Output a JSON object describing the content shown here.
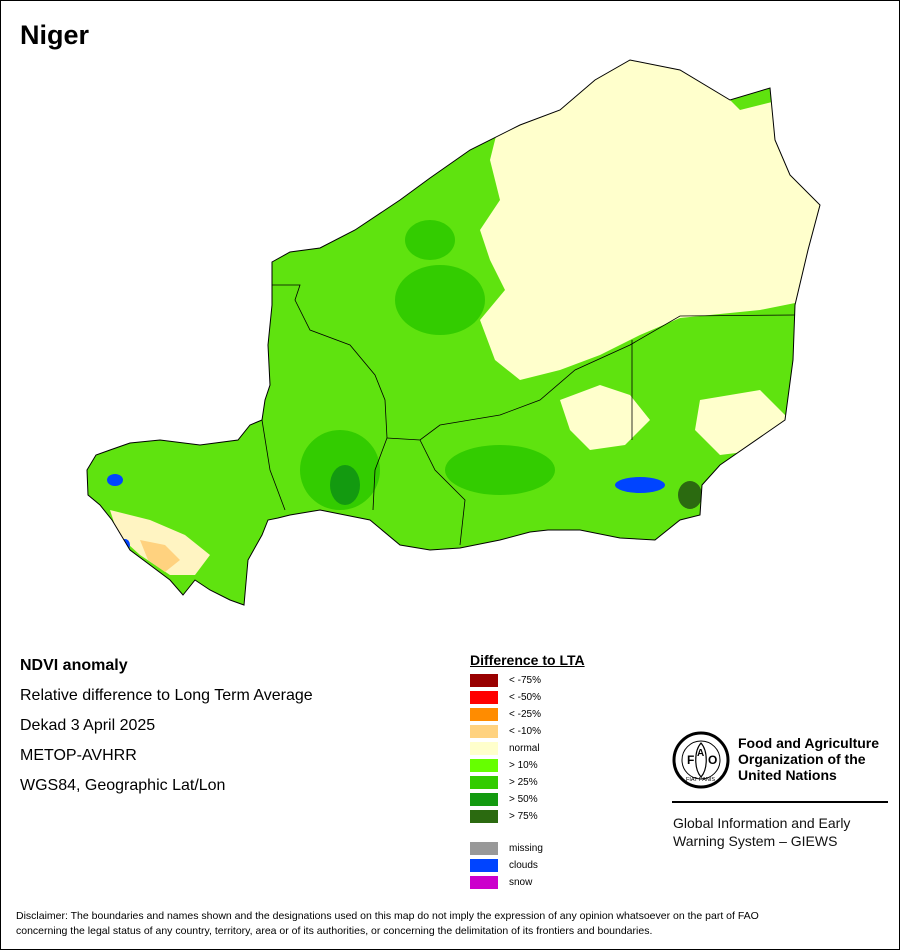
{
  "title": "Niger",
  "info": {
    "heading": "NDVI anomaly",
    "line1": "Relative difference to Long Term Average",
    "line2": "Dekad 3 April 2025",
    "line3": "METOP-AVHRR",
    "line4": "WGS84, Geographic Lat/Lon"
  },
  "legend": {
    "title": "Difference to LTA",
    "items": [
      {
        "label": "< -75%",
        "color": "#990000"
      },
      {
        "label": "< -50%",
        "color": "#ff0000"
      },
      {
        "label": "< -25%",
        "color": "#ff8c00"
      },
      {
        "label": "< -10%",
        "color": "#ffd27f"
      },
      {
        "label": "normal",
        "color": "#ffffcc"
      },
      {
        "label": "> 10%",
        "color": "#66ff00"
      },
      {
        "label": "> 25%",
        "color": "#33cc00"
      },
      {
        "label": "> 50%",
        "color": "#139a10"
      },
      {
        "label": "> 75%",
        "color": "#2b6a10"
      }
    ],
    "extra": [
      {
        "label": "missing",
        "color": "#999999"
      },
      {
        "label": "clouds",
        "color": "#0044ff"
      },
      {
        "label": "snow",
        "color": "#cc00cc"
      }
    ]
  },
  "fao": {
    "org_line1": "Food and Agriculture",
    "org_line2": "Organization of the",
    "org_line3": "United Nations",
    "logo_text": "FAO",
    "logo_motto": "FIAT PANIS",
    "giews_line1": "Global Information and Early",
    "giews_line2": "Warning System – GIEWS"
  },
  "disclaimer_line1": "Disclaimer: The boundaries and names shown and the designations used on this map do not imply the expression of any opinion whatsoever on the part of FAO",
  "disclaimer_line2": "concerning the legal status of any country, territory, area or of its authorities, or concerning the delimitation of its frontiers and boundaries."
}
